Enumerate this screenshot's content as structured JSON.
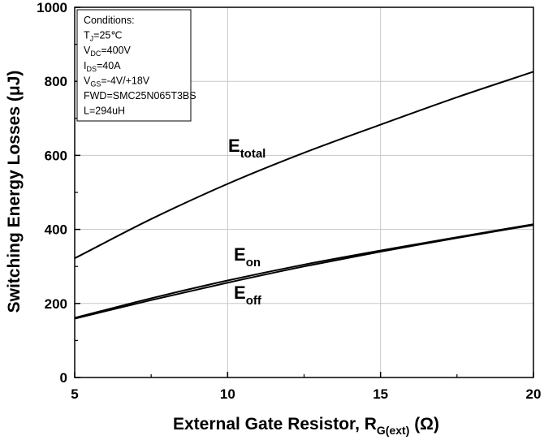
{
  "chart_data": {
    "type": "line",
    "title": "",
    "xlabel": {
      "main": "External Gate Resistor, R",
      "sub": "G(ext)",
      "tail": " (Ω)"
    },
    "ylabel": "Switching Energy Losses (μJ)",
    "xlim": [
      5,
      20
    ],
    "ylim": [
      0,
      1000
    ],
    "x_ticks": [
      5,
      10,
      15,
      20
    ],
    "y_ticks": [
      0,
      200,
      400,
      600,
      800,
      1000
    ],
    "x_tick_labels": [
      "5",
      "10",
      "15",
      "20"
    ],
    "y_tick_labels": [
      "0",
      "200",
      "400",
      "600",
      "800",
      "1000"
    ],
    "grid": true,
    "series": [
      {
        "name": "E_total",
        "label_main": "E",
        "label_sub": "total",
        "x": [
          5,
          7.5,
          10,
          12.5,
          15,
          17.5,
          20
        ],
        "values": [
          322,
          428,
          523,
          607,
          683,
          757,
          826
        ]
      },
      {
        "name": "E_on",
        "label_main": "E",
        "label_sub": "on",
        "x": [
          5,
          7.5,
          10,
          12.5,
          15,
          17.5,
          20
        ],
        "values": [
          161,
          214,
          262,
          305,
          343,
          379,
          414
        ]
      },
      {
        "name": "E_off",
        "label_main": "E",
        "label_sub": "off",
        "x": [
          5,
          7.5,
          10,
          12.5,
          15,
          17.5,
          20
        ],
        "values": [
          159,
          209,
          256,
          300,
          340,
          377,
          412
        ]
      }
    ],
    "legend": {
      "placement": "top-left",
      "lines": [
        {
          "main": "Conditions:",
          "sub": "",
          "tail": ""
        },
        {
          "main": "T",
          "sub": "J",
          "tail": "=25℃"
        },
        {
          "main": "V",
          "sub": "DC",
          "tail": "=400V"
        },
        {
          "main": "I",
          "sub": "DS",
          "tail": "=40A"
        },
        {
          "main": "V",
          "sub": "GS",
          "tail": "=-4V/+18V"
        },
        {
          "main": "FWD=SMC25N065T3BS",
          "sub": "",
          "tail": ""
        },
        {
          "main": "L=294uH",
          "sub": "",
          "tail": ""
        }
      ]
    }
  }
}
